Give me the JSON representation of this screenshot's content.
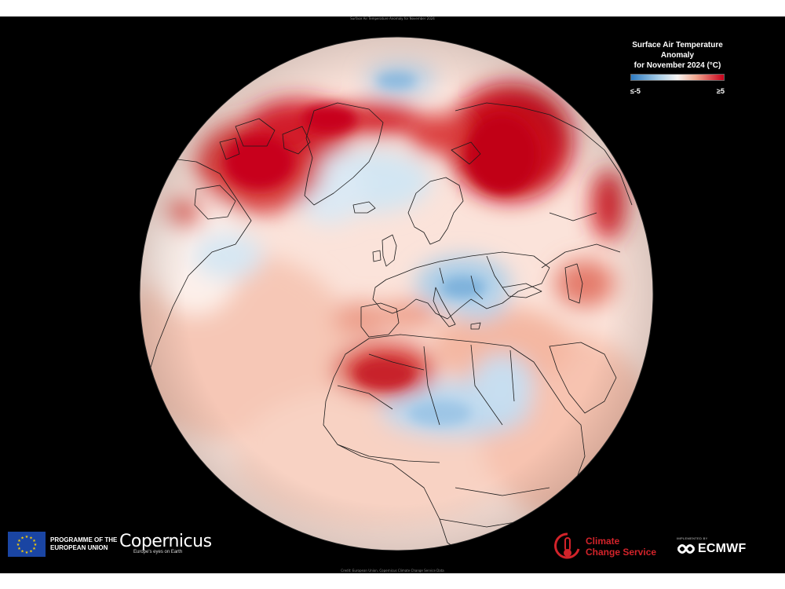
{
  "top_caption": "Surface Air Temperature Anomaly for November 2024",
  "legend": {
    "title_line1": "Surface Air Temperature Anomaly",
    "title_line2": "for November 2024 (°C)",
    "min_label": "≤-5",
    "max_label": "≥5",
    "color_cold": "#2e7bc2",
    "color_neutral": "#f7f4f2",
    "color_warm": "#c8001a"
  },
  "footer": {
    "eu_text_line1": "PROGRAMME OF THE",
    "eu_text_line2": "EUROPEAN UNION",
    "copernicus_name": "Copernicus",
    "copernicus_tagline": "Europe's eyes on Earth",
    "c3s_line1": "Climate",
    "c3s_line2": "Change Service",
    "ecmwf_implemented": "IMPLEMENTED BY",
    "ecmwf_name": "ECMWF",
    "credit": "Credit: European Union, Copernicus Climate Change Service Data"
  },
  "map": {
    "projection": "orthographic",
    "centered_on": "North Atlantic / Europe / Africa",
    "ocean_base_color": "#fbe3da",
    "warm_anomaly_regions": [
      "Canadian Arctic Archipelago",
      "Hudson Bay",
      "Barents Sea / Arctic Russia",
      "Scandinavia north",
      "Western Sahara / Morocco",
      "Black Sea region",
      "Caspian region",
      "Eastern Canada"
    ],
    "cold_anomaly_regions": [
      "Greenland interior",
      "North Atlantic south of Iceland",
      "Central Europe / Balkans",
      "Sahel / Niger / Chad",
      "Western Atlantic near Newfoundland",
      "Arctic Ocean north of Greenland"
    ]
  }
}
